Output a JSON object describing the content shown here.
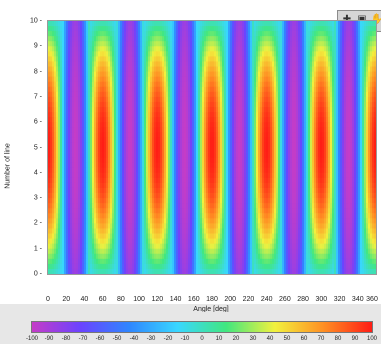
{
  "chart_data": {
    "type": "heatmap",
    "xlabel": "Angle [deg]",
    "ylabel": "Number of line",
    "x_range": [
      0,
      360
    ],
    "y_range": [
      0,
      10
    ],
    "x_ticks": [
      "0",
      "20",
      "40",
      "60",
      "80",
      "100",
      "120",
      "140",
      "160",
      "180",
      "200",
      "220",
      "240",
      "260",
      "280",
      "300",
      "320",
      "340",
      "360"
    ],
    "y_ticks": [
      "0",
      "1",
      "2",
      "3",
      "4",
      "5",
      "6",
      "7",
      "8",
      "9",
      "10"
    ],
    "colorbar": {
      "range": [
        -100,
        100
      ],
      "ticks": [
        "-100",
        "-90",
        "-80",
        "-70",
        "-60",
        "-50",
        "-40",
        "-30",
        "-20",
        "-10",
        "0",
        "10",
        "20",
        "30",
        "40",
        "50",
        "60",
        "70",
        "80",
        "90",
        "100"
      ],
      "colors": [
        "#c53cc7",
        "#6b43ff",
        "#2f86ff",
        "#39d7ff",
        "#41e77f",
        "#f2f13e",
        "#ff8f23",
        "#ff1d16"
      ]
    },
    "pattern": {
      "function": "cosine",
      "period_deg": 60,
      "peak_angles_deg": [
        0,
        60,
        120,
        180,
        240,
        300,
        360
      ],
      "trough_angles_deg": [
        30,
        90,
        150,
        210,
        270,
        330
      ],
      "value_range": [
        -100,
        100
      ],
      "center_line": 5
    },
    "grid": false
  },
  "toolbar": {
    "zoom_icon": "crosshair-icon",
    "pan_icon": "pan-icon",
    "hand_icon": "hand-icon"
  }
}
